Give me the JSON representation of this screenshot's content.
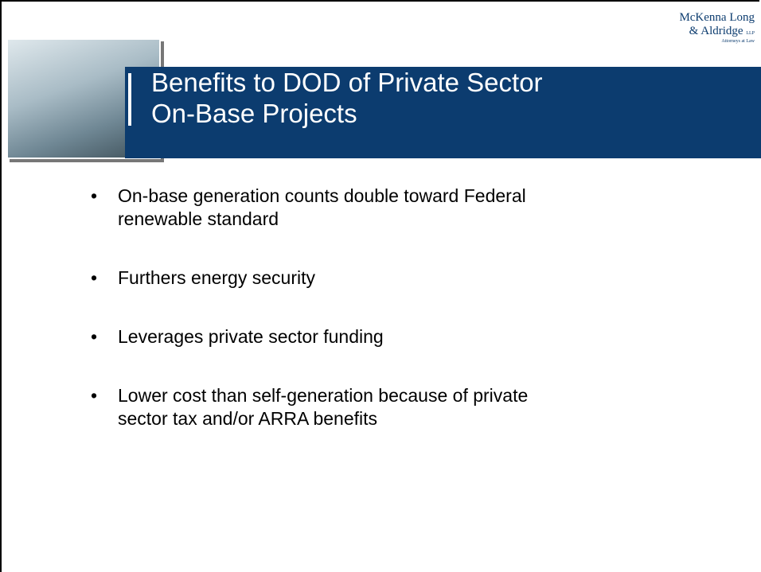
{
  "header": {
    "title_lines": [
      "Benefits to DOD of Private Sector",
      "On-Base Projects"
    ],
    "logo_lines": [
      "McKenna Long",
      "& Aldridge",
      "LLP",
      "Attorneys at Law"
    ]
  },
  "bullets": [
    [
      "On-base generation counts double toward Federal",
      "renewable standard"
    ],
    [
      "Furthers energy security"
    ],
    [
      "Leverages private sector funding"
    ],
    [
      "Lower cost than self-generation because of private",
      "sector tax and/or ARRA benefits"
    ]
  ]
}
